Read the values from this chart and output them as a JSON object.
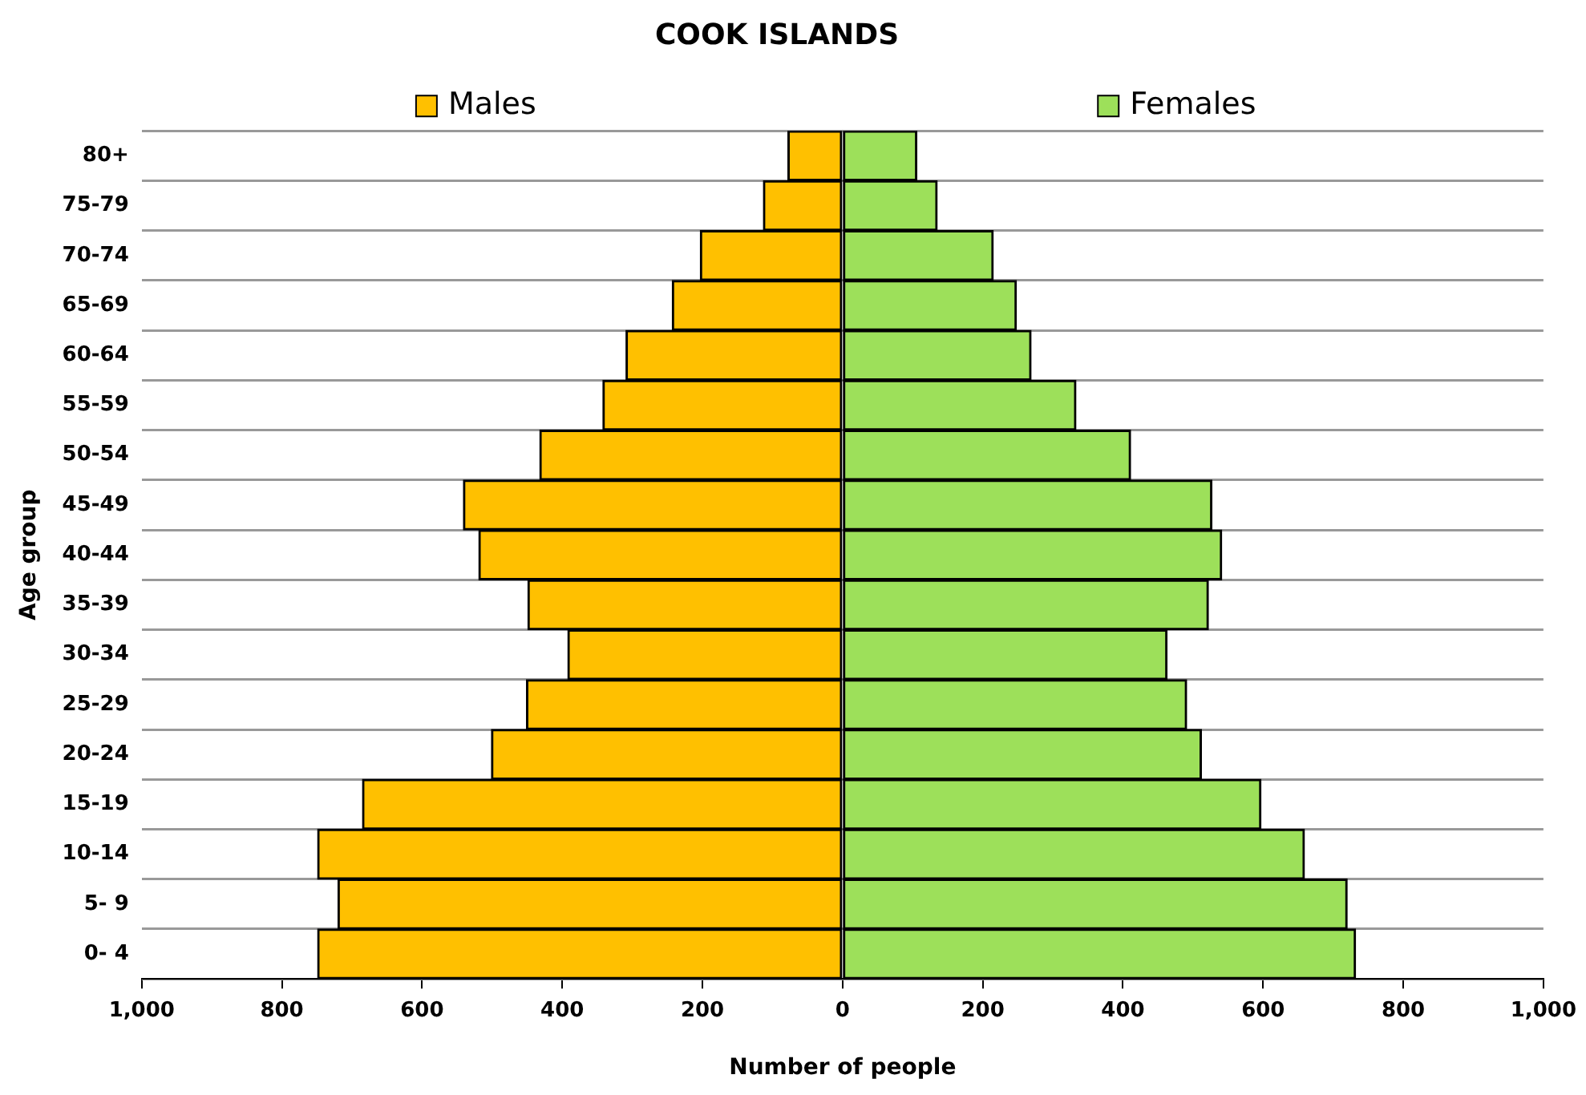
{
  "chart_data": {
    "type": "bar",
    "orientation": "horizontal",
    "stacked": true,
    "title": "COOK ISLANDS",
    "xlabel": "Number of people",
    "ylabel": "Age group",
    "categories": [
      "80+",
      "75-79",
      "70-74",
      "65-69",
      "60-64",
      "55-59",
      "50-54",
      "45-49",
      "40-44",
      "35-39",
      "30-34",
      "25-29",
      "20-24",
      "15-19",
      "10-14",
      "5- 9",
      "0- 4"
    ],
    "series": [
      {
        "name": "Males",
        "color": "#ffc000",
        "values": [
          -78,
          -113,
          -203,
          -243,
          -309,
          -342,
          -432,
          -541,
          -519,
          -449,
          -392,
          -451,
          -501,
          -685,
          -749,
          -720,
          -749
        ]
      },
      {
        "name": "Females",
        "color": "#9de05a",
        "values": [
          106,
          135,
          215,
          248,
          269,
          333,
          411,
          527,
          541,
          522,
          463,
          491,
          512,
          597,
          659,
          720,
          732
        ]
      }
    ],
    "xlim": [
      -1000,
      1000
    ],
    "xticks": [
      {
        "value": -1000,
        "label": "1,000"
      },
      {
        "value": -800,
        "label": "800"
      },
      {
        "value": -600,
        "label": "600"
      },
      {
        "value": -400,
        "label": "400"
      },
      {
        "value": -200,
        "label": "200"
      },
      0,
      200,
      400,
      600,
      800,
      {
        "value": 1000,
        "label": "1,000"
      }
    ],
    "grid": "y",
    "legend": "top"
  }
}
